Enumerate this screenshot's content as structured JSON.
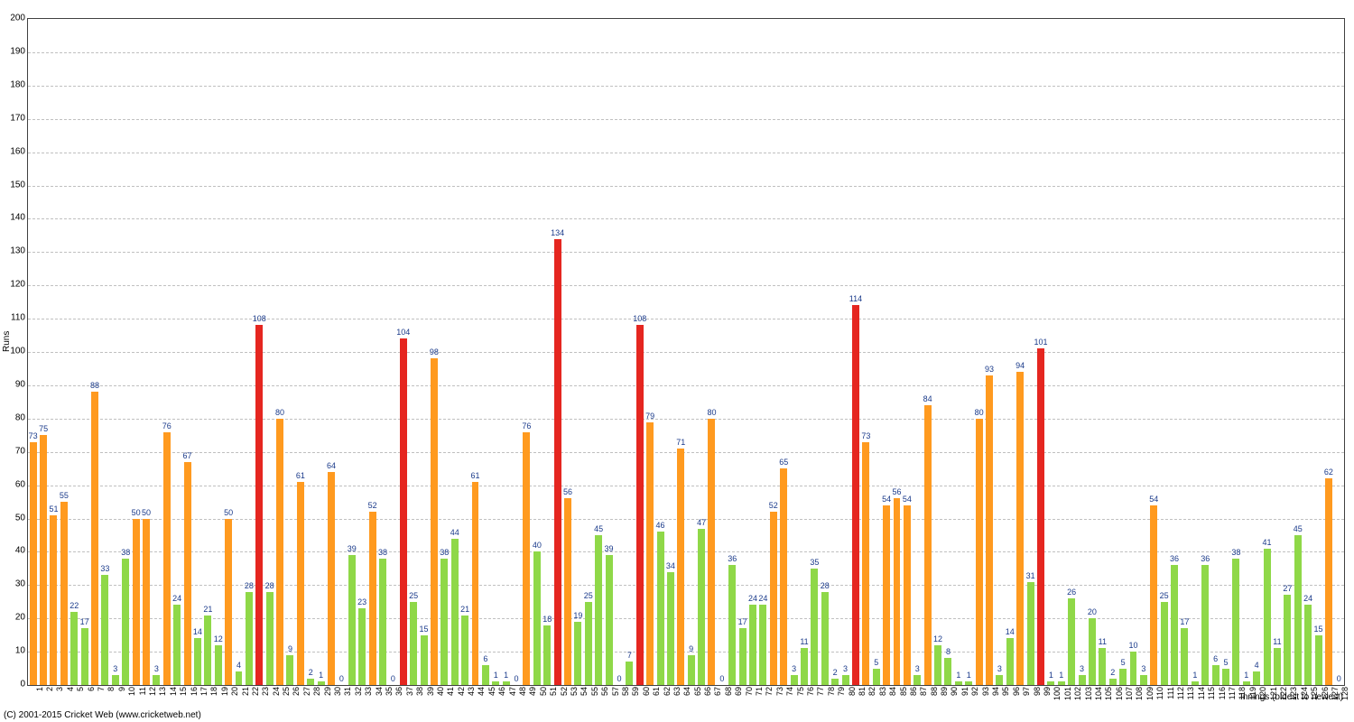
{
  "chart": {
    "type": "bar",
    "background_color": "#ffffff",
    "grid_color": "#c0c0c0",
    "border_color": "#404040",
    "label_color": "#1a3a8a",
    "yaxis_title": "Runs",
    "xaxis_title": "Innings (oldest to newest)",
    "ylim": [
      0,
      200
    ],
    "ytick_step": 10,
    "bar_colors": {
      "low": "#8fd848",
      "mid": "#ff9a1f",
      "high": "#e52620"
    },
    "values": [
      73,
      75,
      51,
      55,
      22,
      17,
      88,
      33,
      3,
      38,
      50,
      50,
      3,
      76,
      24,
      67,
      14,
      21,
      12,
      50,
      4,
      28,
      108,
      28,
      80,
      9,
      61,
      2,
      1,
      64,
      0,
      39,
      23,
      52,
      38,
      0,
      104,
      25,
      15,
      98,
      38,
      44,
      21,
      61,
      6,
      1,
      1,
      0,
      76,
      40,
      18,
      134,
      56,
      19,
      25,
      45,
      39,
      0,
      7,
      108,
      79,
      46,
      34,
      71,
      9,
      47,
      80,
      0,
      36,
      17,
      24,
      24,
      52,
      65,
      3,
      11,
      35,
      28,
      2,
      3,
      114,
      73,
      5,
      54,
      56,
      54,
      3,
      84,
      12,
      8,
      1,
      1,
      80,
      93,
      3,
      14,
      94,
      31,
      101,
      1,
      1,
      26,
      3,
      20,
      11,
      2,
      5,
      10,
      3,
      54,
      25,
      36,
      17,
      1,
      36,
      6,
      5,
      38,
      1,
      4,
      41,
      11,
      27,
      45,
      24,
      15,
      62,
      0
    ],
    "title_fontsize": 10,
    "bar_label_fontsize": 9,
    "tick_fontsize": 10
  },
  "footer": {
    "copyright": "(C) 2001-2015 Cricket Web (www.cricketweb.net)"
  }
}
